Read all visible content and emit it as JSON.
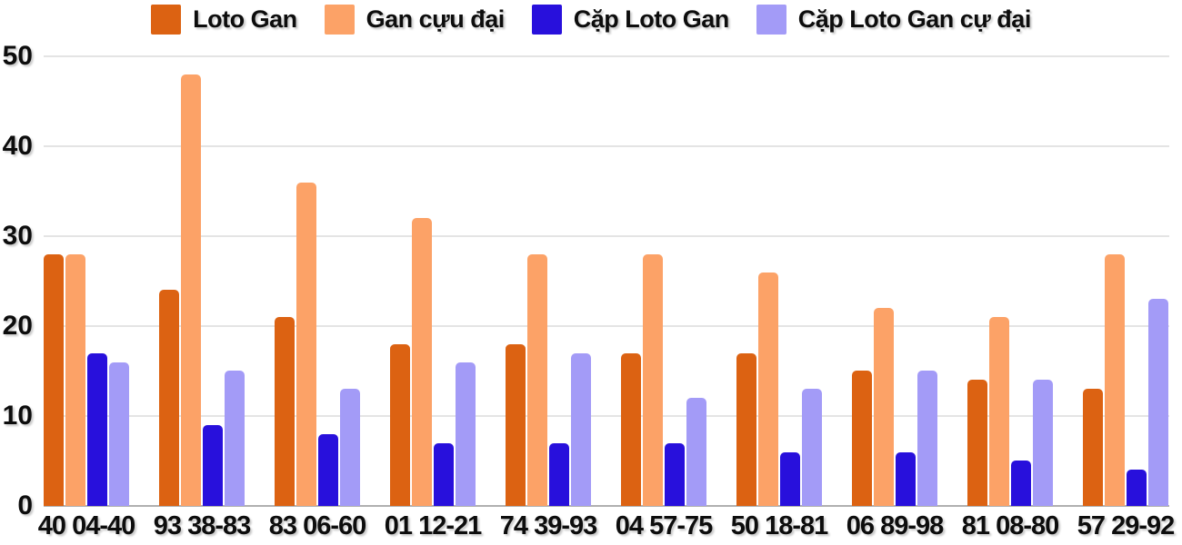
{
  "legend": {
    "items": [
      {
        "label": "Loto Gan",
        "color": "#DC6212"
      },
      {
        "label": "Gan cựu đại",
        "color": "#FCA267"
      },
      {
        "label": "Cặp Loto Gan",
        "color": "#2810DC"
      },
      {
        "label": "Cặp Loto Gan cự đại",
        "color": "#A39BF7"
      }
    ]
  },
  "chart_data": {
    "type": "bar",
    "title": "",
    "categories": [
      "40 04-40",
      "93 38-83",
      "83 06-60",
      "01 12-21",
      "74 39-93",
      "04 57-75",
      "50 18-81",
      "06 89-98",
      "81 08-80",
      "57 29-92"
    ],
    "series": [
      {
        "name": "Loto Gan",
        "color": "#DC6212",
        "values": [
          28,
          24,
          21,
          18,
          18,
          17,
          17,
          15,
          14,
          13
        ]
      },
      {
        "name": "Gan cựu đại",
        "color": "#FCA267",
        "values": [
          28,
          48,
          36,
          32,
          28,
          28,
          26,
          22,
          21,
          28
        ]
      },
      {
        "name": "Cặp Loto Gan",
        "color": "#2810DC",
        "values": [
          17,
          9,
          8,
          7,
          7,
          7,
          6,
          6,
          5,
          4
        ]
      },
      {
        "name": "Cặp Loto Gan cự đại",
        "color": "#A39BF7",
        "values": [
          16,
          15,
          13,
          16,
          17,
          12,
          13,
          15,
          14,
          23
        ]
      }
    ],
    "xlabel": "",
    "ylabel": "",
    "ylim": [
      0,
      50
    ],
    "y_ticks": [
      0,
      10,
      20,
      30,
      40,
      50
    ],
    "grid": true,
    "legend_position": "top"
  },
  "colors": {
    "background": "#FFFFFF",
    "gridline": "#E4E4E4",
    "axis_line": "#B0B0B0",
    "label_text": "#0D0D0D"
  }
}
